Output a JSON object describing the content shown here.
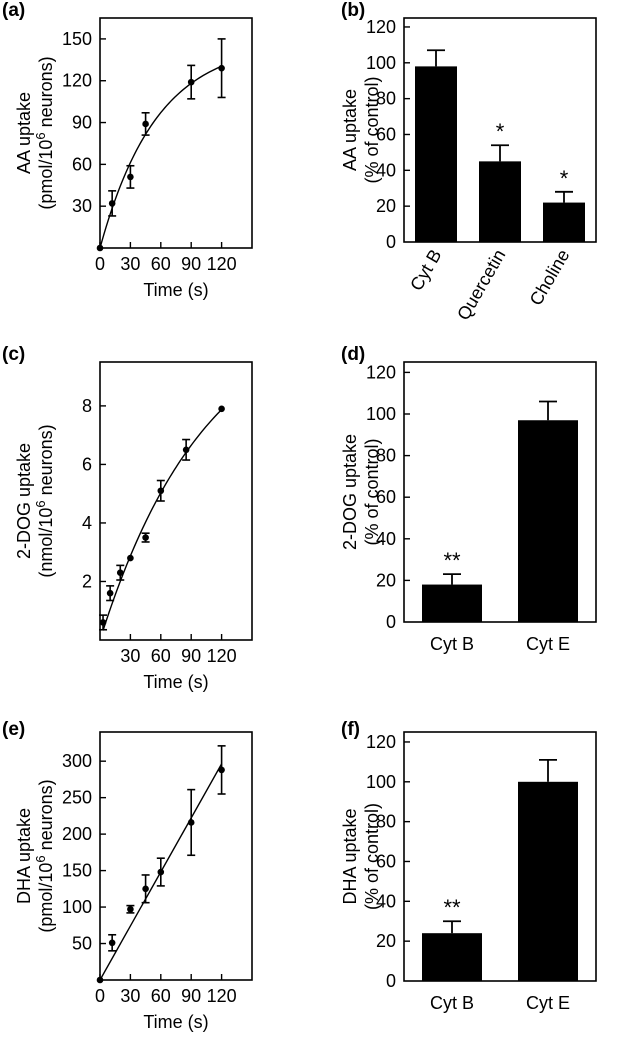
{
  "chart_data": [
    {
      "panel": "(a)",
      "type": "scatter",
      "fit": "saturating curve",
      "ylabel_line1": "AA uptake",
      "ylabel_line2": "(pmol/10",
      "ylabel_sup": "6",
      "ylabel_tail": " neurons)",
      "xlabel": "Time (s)",
      "xlim": [
        0,
        150
      ],
      "ylim": [
        0,
        165
      ],
      "xticks": [
        0,
        30,
        60,
        90,
        120
      ],
      "yticks": [
        30,
        60,
        90,
        120,
        150
      ],
      "points": [
        {
          "x": 0,
          "y": 0,
          "err": 0
        },
        {
          "x": 12,
          "y": 32,
          "err": 9
        },
        {
          "x": 30,
          "y": 51,
          "err": 8
        },
        {
          "x": 45,
          "y": 89,
          "err": 8
        },
        {
          "x": 90,
          "y": 119,
          "err": 12
        },
        {
          "x": 120,
          "y": 129,
          "err": 21
        }
      ]
    },
    {
      "panel": "(b)",
      "type": "bar",
      "ylabel_line1": "AA uptake",
      "ylabel_line2": "(% of control)",
      "ylim": [
        0,
        125
      ],
      "yticks": [
        0,
        20,
        40,
        60,
        80,
        100,
        120
      ],
      "categories": [
        "Cyt B",
        "Quercetin",
        "Choline"
      ],
      "values": [
        98,
        45,
        22
      ],
      "errors": [
        9,
        9,
        6
      ],
      "stars": [
        "",
        "*",
        "*"
      ],
      "tick_rotation": -60
    },
    {
      "panel": "(c)",
      "type": "scatter",
      "fit": "saturating curve",
      "ylabel_line1": "2-DOG uptake",
      "ylabel_line2": "(nmol/10",
      "ylabel_sup": "6",
      "ylabel_tail": " neurons)",
      "xlabel": "Time (s)",
      "xlim": [
        0,
        150
      ],
      "ylim": [
        0,
        9.5
      ],
      "xticks": [
        30,
        60,
        90,
        120
      ],
      "yticks": [
        2,
        4,
        6,
        8
      ],
      "points": [
        {
          "x": 3,
          "y": 0.6,
          "err": 0.25
        },
        {
          "x": 10,
          "y": 1.6,
          "err": 0.25
        },
        {
          "x": 20,
          "y": 2.3,
          "err": 0.25
        },
        {
          "x": 30,
          "y": 2.8,
          "err": 0
        },
        {
          "x": 45,
          "y": 3.5,
          "err": 0.15
        },
        {
          "x": 60,
          "y": 5.1,
          "err": 0.35
        },
        {
          "x": 85,
          "y": 6.5,
          "err": 0.35
        },
        {
          "x": 120,
          "y": 7.9,
          "err": 0
        }
      ]
    },
    {
      "panel": "(d)",
      "type": "bar",
      "ylabel_line1": "2-DOG uptake",
      "ylabel_line2": "(% of control)",
      "ylim": [
        0,
        125
      ],
      "yticks": [
        0,
        20,
        40,
        60,
        80,
        100,
        120
      ],
      "categories": [
        "Cyt B",
        "Cyt E"
      ],
      "values": [
        18,
        97
      ],
      "errors": [
        5,
        9
      ],
      "stars": [
        "**",
        ""
      ],
      "tick_rotation": 0
    },
    {
      "panel": "(e)",
      "type": "scatter",
      "fit": "linear",
      "ylabel_line1": "DHA uptake",
      "ylabel_line2": "(pmol/10",
      "ylabel_sup": "6",
      "ylabel_tail": " neurons)",
      "xlabel": "Time (s)",
      "xlim": [
        0,
        150
      ],
      "ylim": [
        0,
        340
      ],
      "xticks": [
        0,
        30,
        60,
        90,
        120
      ],
      "yticks": [
        50,
        100,
        150,
        200,
        250,
        300
      ],
      "points": [
        {
          "x": 0,
          "y": 0,
          "err": 0
        },
        {
          "x": 12,
          "y": 51,
          "err": 11
        },
        {
          "x": 30,
          "y": 97,
          "err": 5
        },
        {
          "x": 45,
          "y": 125,
          "err": 19
        },
        {
          "x": 60,
          "y": 148,
          "err": 19
        },
        {
          "x": 90,
          "y": 216,
          "err": 45
        },
        {
          "x": 120,
          "y": 288,
          "err": 33
        }
      ]
    },
    {
      "panel": "(f)",
      "type": "bar",
      "ylabel_line1": "DHA uptake",
      "ylabel_line2": "(% of control)",
      "ylim": [
        0,
        125
      ],
      "yticks": [
        0,
        20,
        40,
        60,
        80,
        100,
        120
      ],
      "categories": [
        "Cyt B",
        "Cyt E"
      ],
      "values": [
        24,
        100
      ],
      "errors": [
        6,
        11
      ],
      "stars": [
        "**",
        ""
      ],
      "tick_rotation": 0
    }
  ]
}
